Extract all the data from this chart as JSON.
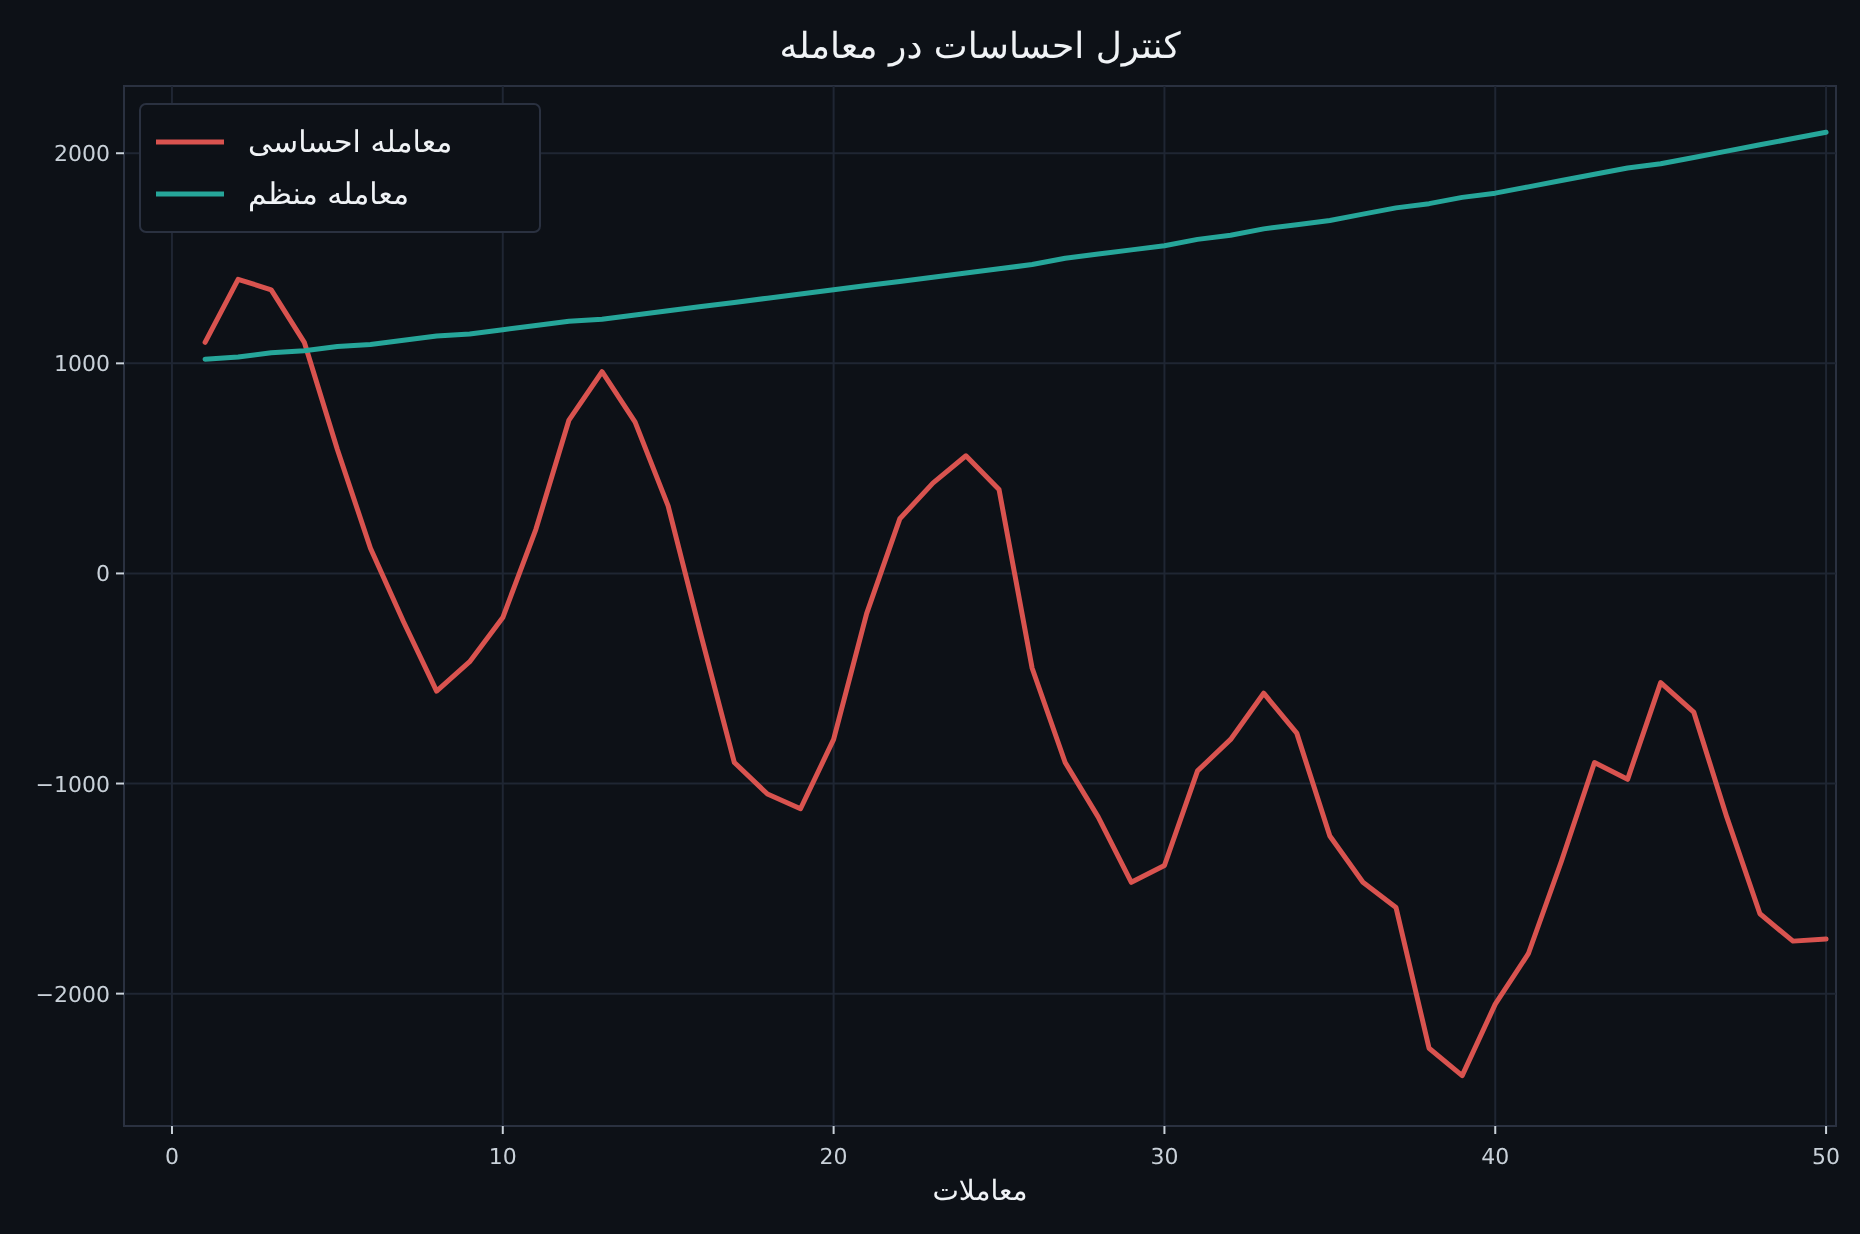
{
  "chart_data": {
    "type": "line",
    "title": "کنترل احساسات در معامله",
    "xlabel": "معاملات",
    "x": [
      1,
      2,
      3,
      4,
      5,
      6,
      7,
      8,
      9,
      10,
      11,
      12,
      13,
      14,
      15,
      16,
      17,
      18,
      19,
      20,
      21,
      22,
      23,
      24,
      25,
      26,
      27,
      28,
      29,
      30,
      31,
      32,
      33,
      34,
      35,
      36,
      37,
      38,
      39,
      40,
      41,
      42,
      43,
      44,
      45,
      46,
      47,
      48,
      49,
      50
    ],
    "series": [
      {
        "name": "معامله احساسی",
        "color": "#d9534f",
        "values": [
          1100,
          1400,
          1350,
          1100,
          590,
          120,
          -230,
          -560,
          -420,
          -210,
          210,
          730,
          960,
          720,
          320,
          -300,
          -900,
          -1050,
          -1120,
          -790,
          -190,
          260,
          430,
          560,
          400,
          -450,
          -900,
          -1160,
          -1470,
          -1390,
          -940,
          -790,
          -570,
          -760,
          -1250,
          -1470,
          -1590,
          -2260,
          -2390,
          -2050,
          -1810,
          -1370,
          -900,
          -980,
          -520,
          -660,
          -1160,
          -1620,
          -1750,
          -1740
        ]
      },
      {
        "name": "معامله منظم",
        "color": "#26a69a",
        "values": [
          1020,
          1030,
          1050,
          1060,
          1080,
          1090,
          1110,
          1130,
          1140,
          1160,
          1180,
          1200,
          1210,
          1230,
          1250,
          1270,
          1290,
          1310,
          1330,
          1350,
          1370,
          1390,
          1410,
          1430,
          1450,
          1470,
          1500,
          1520,
          1540,
          1560,
          1590,
          1610,
          1640,
          1660,
          1680,
          1710,
          1740,
          1760,
          1790,
          1810,
          1840,
          1870,
          1900,
          1930,
          1950,
          1980,
          2010,
          2040,
          2070,
          2100
        ]
      }
    ],
    "xlim": [
      -1.45,
      50.3
    ],
    "ylim": [
      -2630,
      2320
    ],
    "xticks": [
      0,
      10,
      20,
      30,
      40,
      50
    ],
    "yticks": [
      -2000,
      -1000,
      0,
      1000,
      2000
    ],
    "grid": true,
    "legend": "top left"
  }
}
